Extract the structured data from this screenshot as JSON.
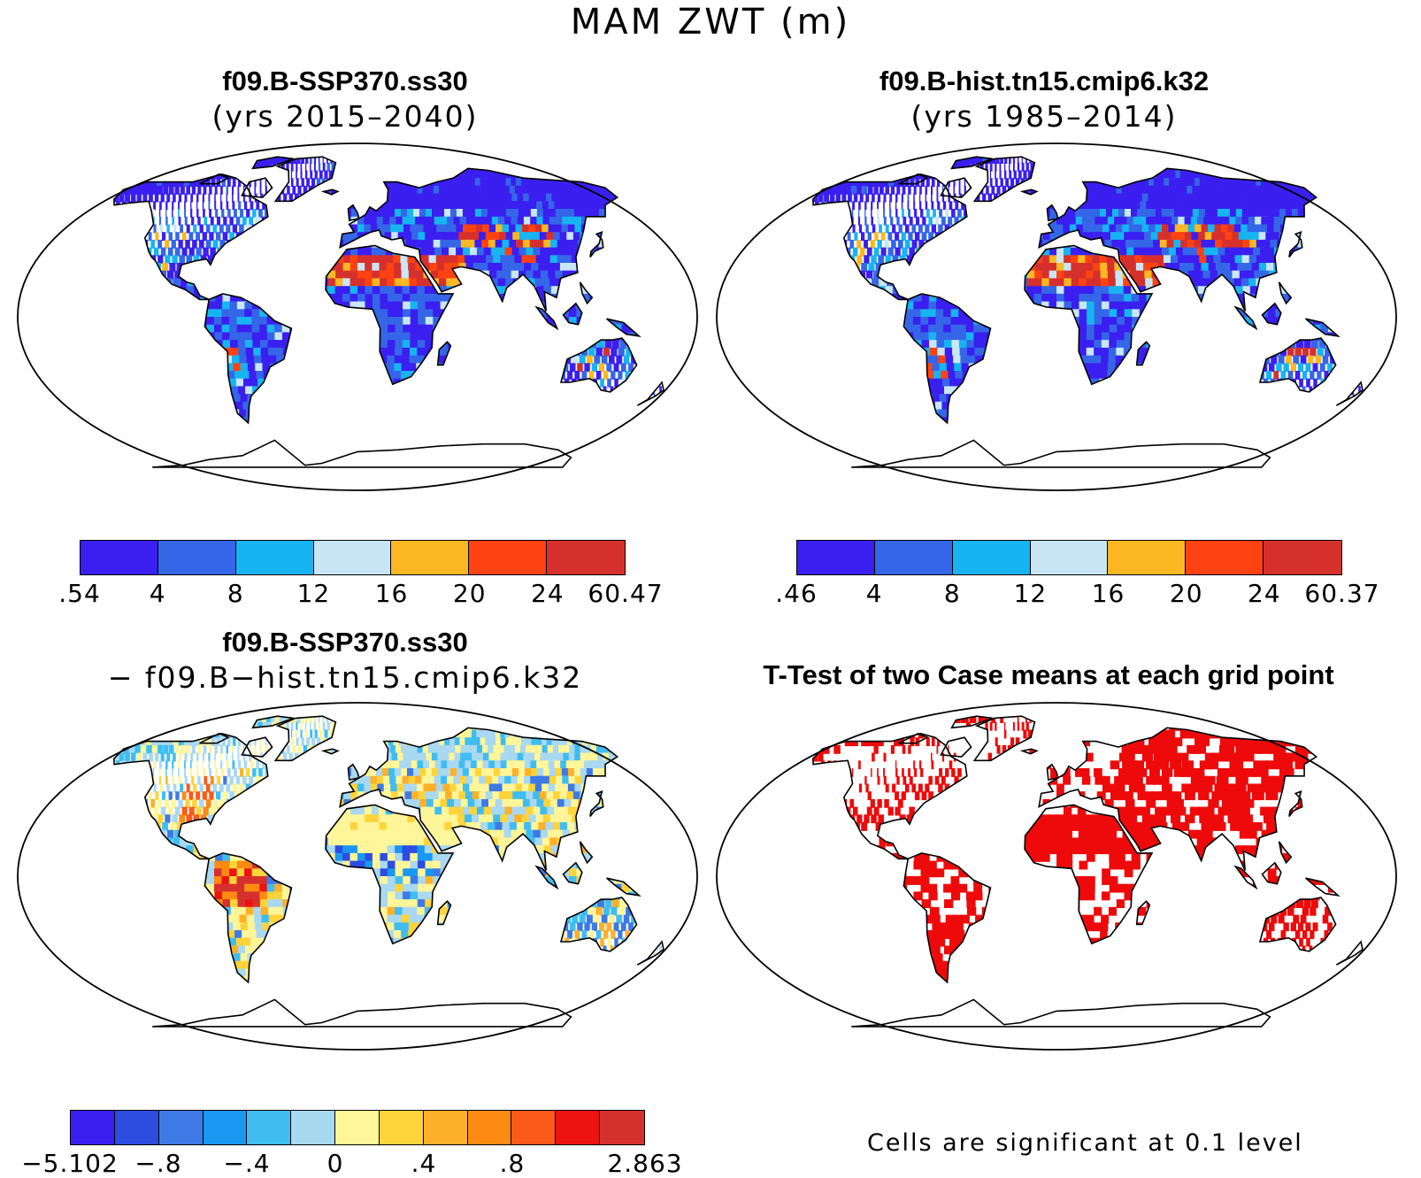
{
  "title": "MAM ZWT (m)",
  "panels": [
    {
      "id": "ssp370",
      "title": "f09.B-SSP370.ss30",
      "subtitle": "(yrs 2015–2040)",
      "colorbar": {
        "colors": [
          "#3a1ff0",
          "#3566e8",
          "#17b4f2",
          "#c8e6f6",
          "#fbb822",
          "#ff4211",
          "#d6302d"
        ],
        "ticks": [
          ".54",
          "4",
          "8",
          "12",
          "16",
          "20",
          "24",
          "60.47"
        ]
      }
    },
    {
      "id": "hist",
      "title": "f09.B-hist.tn15.cmip6.k32",
      "subtitle": "(yrs 1985–2014)",
      "colorbar": {
        "colors": [
          "#3a1ff0",
          "#3566e8",
          "#17b4f2",
          "#c8e6f6",
          "#fbb822",
          "#ff4211",
          "#d6302d"
        ],
        "ticks": [
          ".46",
          "4",
          "8",
          "12",
          "16",
          "20",
          "24",
          "60.37"
        ]
      }
    },
    {
      "id": "diff",
      "title": "f09.B-SSP370.ss30",
      "subtitle": "− f09.B−hist.tn15.cmip6.k32",
      "colorbar": {
        "colors": [
          "#3a1ff0",
          "#2c4de0",
          "#3e7ae6",
          "#1a97f0",
          "#3fbdf2",
          "#a9d8f1",
          "#fff599",
          "#fed43a",
          "#fdb02a",
          "#fd8a12",
          "#fb5a18",
          "#ec1310",
          "#d6302d"
        ],
        "ticks": [
          "−5.102",
          "−.8",
          "−.4",
          "0",
          ".4",
          ".8",
          "2.863"
        ]
      }
    },
    {
      "id": "ttest",
      "title": "T-Test of two Case means at each grid point",
      "note": "Cells are significant at 0.1 level",
      "significant_color": "#ee0a0a"
    }
  ]
}
